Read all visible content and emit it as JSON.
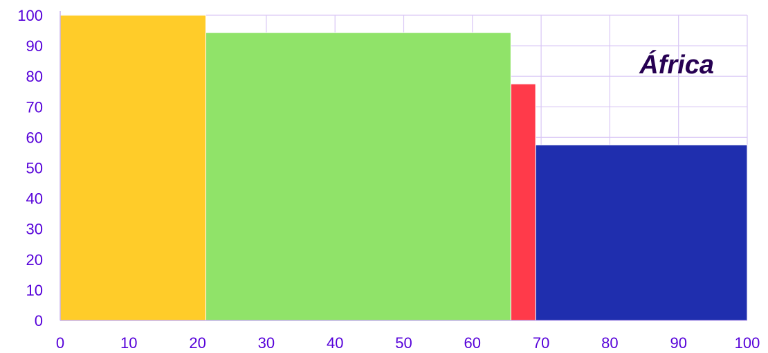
{
  "chart_data": {
    "type": "bar",
    "title": "África",
    "xlabel": "",
    "ylabel": "",
    "xlim": [
      0,
      100
    ],
    "ylim": [
      0,
      100
    ],
    "x_ticks": [
      "0",
      "10",
      "20",
      "30",
      "40",
      "50",
      "60",
      "70",
      "80",
      "90",
      "100"
    ],
    "y_ticks": [
      "0",
      "10",
      "20",
      "30",
      "40",
      "50",
      "60",
      "70",
      "80",
      "90",
      "100"
    ],
    "grid": true,
    "bars": [
      {
        "x_start": 0,
        "x_end": 21.2,
        "value": 100,
        "color": "#FFCC29"
      },
      {
        "x_start": 21.2,
        "x_end": 65.6,
        "value": 94.3,
        "color": "#90E369"
      },
      {
        "x_start": 65.6,
        "x_end": 69.2,
        "value": 77.5,
        "color": "#FF3A4A"
      },
      {
        "x_start": 69.2,
        "x_end": 100,
        "value": 57.5,
        "color": "#1F2EAE"
      }
    ]
  },
  "colors": {
    "grid": "#D9C7F5",
    "axis": "#C8B4F0",
    "tick_text": "#5500D9",
    "title_text": "#260052"
  }
}
